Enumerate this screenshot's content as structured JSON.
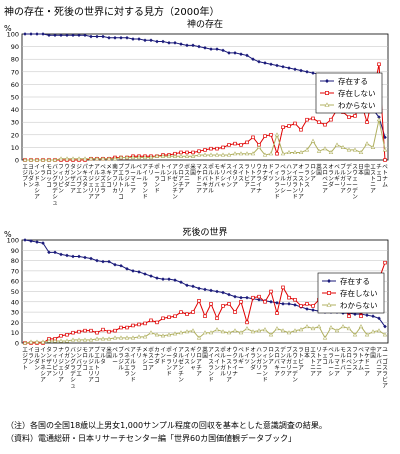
{
  "title": "神の存在・死後の世界に対する見方（2000年）",
  "notes": [
    "（注）各国の全国18歳以上男女1,000サンプル程度の回収を基本とした意識調査の結果。",
    "（資料）電通総研・日本リサーチセンター編「世界60カ国価値観データブック」"
  ],
  "colors": {
    "exists": "#1a1a7a",
    "not_exists": "#e00000",
    "unknown": "#b0b060"
  },
  "chart_data": [
    {
      "type": "line",
      "title": "神の存在",
      "unit": "%",
      "ylim": [
        0,
        100
      ],
      "yticks": [
        0,
        10,
        20,
        30,
        40,
        50,
        60,
        70,
        80,
        90,
        100
      ],
      "grid": true,
      "legend": "right-middle",
      "categories": [
        "エジプト",
        "ヨルダン",
        "インドネシア",
        "イラン",
        "モロッコ",
        "バングラデシュ",
        "フィリピン",
        "ウガンダ",
        "タンザニア",
        "ジンバブエ",
        "パキスタン",
        "ナイジェリア",
        "アルジェリア",
        "ベネズエラ",
        "メキシコ",
        "南アフリカ",
        "プエルトリコ",
        "ブラジル",
        "ルーマニア",
        "ペルー",
        "アイルランド",
        "チリ",
        "ポーランド",
        "トルコ",
        "インド",
        "アルゼンチン",
        "クロアチア",
        "ボスニア",
        "米国",
        "マケドニア",
        "スロバキア",
        "ポルトガル",
        "モルドバ",
        "ギリシャ",
        "スペイン",
        "イタリア",
        "スイス",
        "ラトビア",
        "リトアニア",
        "ウクライナ",
        "カナダ",
        "ドイツ",
        "フィンランド",
        "ベラルーシ",
        "ハンガリー",
        "アイスランド",
        "オーストリア",
        "フランス",
        "ロシア",
        "英国",
        "スロベニア",
        "オランダ",
        "ベルギー",
        "ブルガリア",
        "デンマーク",
        "スウェーデン",
        "日本",
        "中国",
        "エストニア",
        "チェコ",
        "ベトナム"
      ],
      "series": [
        {
          "name": "存在する",
          "values": [
            100,
            100,
            100,
            100,
            99,
            99,
            99,
            99,
            99,
            99,
            99,
            98,
            98,
            98,
            97,
            97,
            97,
            97,
            96,
            96,
            95,
            95,
            94,
            94,
            93,
            93,
            92,
            91,
            91,
            90,
            89,
            88,
            88,
            87,
            85,
            85,
            84,
            83,
            80,
            78,
            77,
            76,
            75,
            74,
            73,
            72,
            71,
            70,
            69,
            68,
            67,
            65,
            64,
            62,
            62,
            61,
            55,
            46,
            40,
            34,
            18
          ]
        },
        {
          "name": "存在しない",
          "values": [
            0,
            0,
            0,
            0,
            0,
            0,
            0,
            0,
            0,
            0,
            0,
            1,
            1,
            1,
            1,
            2,
            2,
            2,
            3,
            3,
            3,
            3,
            3,
            4,
            4,
            5,
            6,
            6,
            6,
            7,
            8,
            9,
            9,
            10,
            12,
            13,
            12,
            14,
            18,
            12,
            19,
            20,
            5,
            26,
            27,
            29,
            24,
            32,
            33,
            30,
            28,
            32,
            40,
            38,
            34,
            35,
            46,
            30,
            52,
            76,
            0
          ]
        },
        {
          "name": "わからない",
          "values": [
            0,
            0,
            0,
            0,
            0,
            0,
            1,
            1,
            1,
            1,
            1,
            1,
            1,
            1,
            1,
            1,
            2,
            2,
            2,
            2,
            2,
            2,
            3,
            3,
            3,
            3,
            3,
            3,
            3,
            4,
            4,
            4,
            4,
            4,
            4,
            5,
            5,
            5,
            5,
            10,
            4,
            5,
            20,
            5,
            6,
            6,
            6,
            8,
            15,
            7,
            9,
            6,
            12,
            10,
            8,
            8,
            6,
            13,
            10,
            32,
            8
          ]
        }
      ]
    },
    {
      "type": "line",
      "title": "死後の世界",
      "unit": "%",
      "ylim": [
        0,
        100
      ],
      "yticks": [
        0,
        10,
        20,
        30,
        40,
        50,
        60,
        70,
        80,
        90,
        100
      ],
      "grid": true,
      "legend": "right-middle",
      "categories": [
        "エジプト",
        "イラン",
        "ヨルダン",
        "インドネシア",
        "タンザニア",
        "フィリピン",
        "ナイジェリア",
        "ウガンダ",
        "バングラデシュ",
        "ジンバブエ",
        "モロッコ",
        "アルジェリア",
        "プエルトリコ",
        "マルタ",
        "米国",
        "ペルー",
        "ブラジル",
        "ベネズエラ",
        "アイルランド",
        "チリ",
        "メキシコ",
        "ボスニア",
        "カナダ",
        "インド",
        "ポーランド",
        "イタリア",
        "アルゼンチン",
        "スイス",
        "ギリシャ",
        "クロアチア",
        "英国",
        "アイスランド",
        "スペイン",
        "ポルトガル",
        "オーストリア",
        "ウクライナ",
        "ベルギー",
        "ドイツ",
        "オランダ",
        "ハンガリー",
        "フィンランド",
        "ロシア",
        "スロバキア",
        "デンマーク",
        "ブルガリア",
        "スウェーデン",
        "ラトビア",
        "日本",
        "エストニア",
        "リトアニア",
        "チェコ",
        "ベラルーシ",
        "ルーマニア",
        "モルドバ",
        "スロベニア",
        "フランス",
        "ベトナム",
        "マケドニア",
        "中国",
        "アルバニア",
        "ユーゴスラビア"
      ],
      "series": [
        {
          "name": "存在する",
          "values": [
            100,
            99,
            98,
            97,
            88,
            88,
            86,
            85,
            84,
            84,
            83,
            82,
            80,
            79,
            79,
            76,
            75,
            72,
            70,
            69,
            67,
            65,
            63,
            62,
            62,
            61,
            59,
            56,
            55,
            53,
            52,
            51,
            50,
            49,
            47,
            45,
            44,
            44,
            43,
            42,
            41,
            40,
            39,
            38,
            38,
            37,
            35,
            33,
            32,
            31,
            30,
            30,
            30,
            29,
            29,
            28,
            28,
            27,
            26,
            24,
            16
          ]
        },
        {
          "name": "存在しない",
          "values": [
            0,
            0,
            0,
            0,
            4,
            4,
            7,
            8,
            10,
            11,
            12,
            12,
            10,
            13,
            11,
            12,
            15,
            15,
            17,
            18,
            19,
            22,
            20,
            24,
            25,
            26,
            30,
            28,
            30,
            41,
            26,
            38,
            24,
            36,
            38,
            30,
            40,
            20,
            44,
            45,
            40,
            50,
            29,
            54,
            44,
            42,
            36,
            38,
            36,
            42,
            60,
            38,
            32,
            36,
            26,
            42,
            26,
            45,
            34,
            62,
            78
          ]
        },
        {
          "name": "わからない",
          "values": [
            0,
            1,
            1,
            1,
            2,
            2,
            2,
            2,
            3,
            3,
            3,
            3,
            4,
            4,
            4,
            5,
            5,
            5,
            5,
            6,
            6,
            10,
            8,
            7,
            8,
            9,
            10,
            11,
            12,
            5,
            10,
            10,
            13,
            11,
            10,
            12,
            10,
            14,
            11,
            12,
            13,
            8,
            14,
            12,
            10,
            12,
            13,
            16,
            14,
            16,
            5,
            15,
            12,
            16,
            14,
            8,
            16,
            8,
            11,
            12,
            8
          ]
        }
      ]
    }
  ]
}
